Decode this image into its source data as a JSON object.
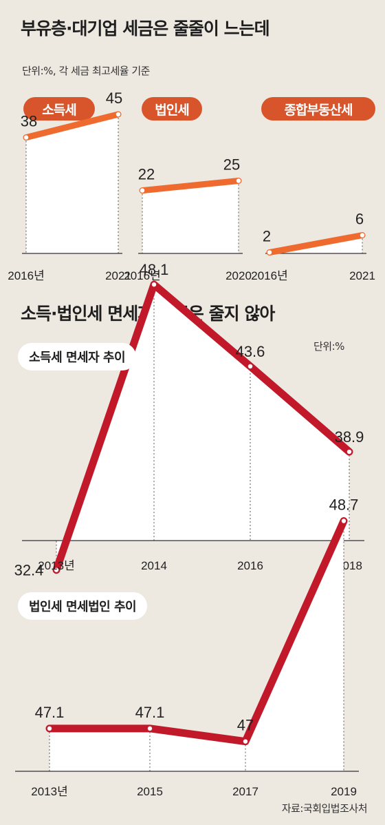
{
  "section1": {
    "title": "부유층·대기업 세금은 줄줄이 느는데",
    "unit": "단위:%, 각 세금 최고세율 기준"
  },
  "section2": {
    "title": "소득·법인세 면세자 비중은 줄지 않아",
    "unit": "단위:%"
  },
  "source": "자료:국회입법조사처",
  "colors": {
    "orange": "#ef6a2e",
    "pill": "#d8552b",
    "red": "#c2192a"
  },
  "chart_data": [
    {
      "type": "line",
      "title": "소득세",
      "categories": [
        "2016년",
        "2021"
      ],
      "values": [
        38,
        45
      ],
      "labels": [
        "38",
        "45"
      ]
    },
    {
      "type": "line",
      "title": "법인세",
      "categories": [
        "2016년",
        "2020"
      ],
      "values": [
        22,
        25
      ],
      "labels": [
        "22",
        "25"
      ]
    },
    {
      "type": "line",
      "title": "종합부동산세",
      "categories": [
        "2016년",
        "2021"
      ],
      "values": [
        2,
        6
      ],
      "labels": [
        "2",
        "6"
      ]
    },
    {
      "type": "line",
      "title": "소득세 면세자 추이",
      "categories": [
        "2013년",
        "2014",
        "2016",
        "2018"
      ],
      "values": [
        32.4,
        48.1,
        43.6,
        38.9
      ],
      "labels": [
        "32.4",
        "48.1",
        "43.6",
        "38.9"
      ]
    },
    {
      "type": "line",
      "title": "법인세 면세법인 추이",
      "categories": [
        "2013년",
        "2015",
        "2017",
        "2019"
      ],
      "values": [
        47.1,
        47.1,
        47,
        48.7
      ],
      "labels": [
        "47.1",
        "47.1",
        "47",
        "48.7"
      ]
    }
  ]
}
